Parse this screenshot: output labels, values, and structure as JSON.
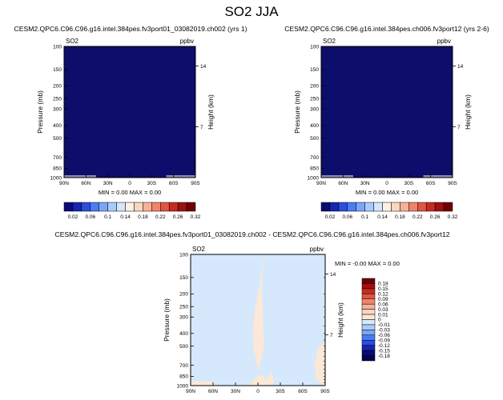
{
  "figure": {
    "title": "SO2 JJA"
  },
  "chart_data": [
    {
      "type": "heatmap",
      "panel": "top-left",
      "title": "CESM2.QPC6.C96.C96.g16.intel.384pes.fv3port01_03082019.ch002 (yrs 1)",
      "left_label": "SO2",
      "right_label": "ppbv",
      "xlabel": "",
      "ylabel": "Pressure (mb)",
      "y2label": "Height (km)",
      "x_ticks": [
        "90N",
        "60N",
        "30N",
        "0",
        "30S",
        "60S",
        "90S"
      ],
      "y_ticks": [
        "100",
        "150",
        "200",
        "250",
        "300",
        "400",
        "500",
        "700",
        "850",
        "1000"
      ],
      "y_tick_values": [
        100,
        150,
        200,
        250,
        300,
        400,
        500,
        700,
        850,
        1000
      ],
      "y2_ticks": [
        "14",
        "7"
      ],
      "y2_tick_pressures": [
        141,
        410
      ],
      "ylim": [
        1000,
        100
      ],
      "y_scale": "log",
      "min_max_text": "MIN =  0.00   MAX =  0.00",
      "field": "uniform",
      "fill_color": "#0d0d6b"
    },
    {
      "type": "heatmap",
      "panel": "top-right",
      "title": "CESM2.QPC6.C96.C96.g16.intel.384pes.ch006.fv3port12 (yrs 2-6)",
      "left_label": "SO2",
      "right_label": "ppbv",
      "xlabel": "",
      "ylabel": "Pressure (mb)",
      "y2label": "Height (km)",
      "x_ticks": [
        "90N",
        "60N",
        "30N",
        "0",
        "30S",
        "60S",
        "90S"
      ],
      "y_ticks": [
        "100",
        "150",
        "200",
        "250",
        "300",
        "400",
        "500",
        "700",
        "850",
        "1000"
      ],
      "y_tick_values": [
        100,
        150,
        200,
        250,
        300,
        400,
        500,
        700,
        850,
        1000
      ],
      "y2_ticks": [
        "14",
        "7"
      ],
      "y2_tick_pressures": [
        141,
        410
      ],
      "ylim": [
        1000,
        100
      ],
      "y_scale": "log",
      "min_max_text": "MIN =  0.00   MAX =  0.00",
      "field": "uniform",
      "fill_color": "#0d0d6b"
    },
    {
      "type": "heatmap",
      "panel": "bottom-difference",
      "title": "CESM2.QPC6.C96.C96.g16.intel.384pes.fv3port01_03082019.ch002 - CESM2.QPC6.C96.C96.g16.intel.384pes.ch006.fv3port12",
      "left_label": "SO2",
      "right_label": "ppbv",
      "xlabel": "",
      "ylabel": "Pressure (mb)",
      "y2label": "Height (km)",
      "x_ticks": [
        "90N",
        "60N",
        "30N",
        "0",
        "30S",
        "60S",
        "90S"
      ],
      "y_ticks": [
        "100",
        "150",
        "200",
        "250",
        "300",
        "400",
        "500",
        "700",
        "850",
        "1000"
      ],
      "y_tick_values": [
        100,
        150,
        200,
        250,
        300,
        400,
        500,
        700,
        850,
        1000
      ],
      "y2_ticks": [
        "14",
        "7"
      ],
      "y2_tick_pressures": [
        141,
        410
      ],
      "ylim": [
        1000,
        100
      ],
      "y_scale": "log",
      "min_max_text": "MIN = -0.00   MAX =  0.00",
      "background_color": "#d6e8fb",
      "contour_color": "#fbe8d6",
      "regions": [
        {
          "label": "equatorial column",
          "lat": [
            -7,
            -3,
            4,
            7,
            6,
            3,
            0,
            -2,
            -6,
            -8,
            -7,
            -5
          ],
          "p": [
            100,
            160,
            260,
            380,
            500,
            620,
            760,
            700,
            600,
            480,
            320,
            180
          ]
        },
        {
          "label": "southern surface",
          "lat": [
            -90,
            -78,
            -76,
            -80,
            -90
          ],
          "p": [
            1000,
            900,
            700,
            520,
            470
          ]
        },
        {
          "label": "northern surface",
          "lat": [
            90,
            70,
            55,
            65,
            90
          ],
          "p": [
            1000,
            990,
            1000,
            930,
            920
          ]
        },
        {
          "label": "tropical surface",
          "lat": [
            10,
            5,
            -5,
            -12,
            -18,
            -22,
            -15,
            -5,
            5
          ],
          "p": [
            1000,
            880,
            820,
            900,
            780,
            940,
            1000,
            990,
            1000
          ]
        }
      ]
    }
  ],
  "colorbars": {
    "top_left": {
      "labels": [
        "0.02",
        "0.06",
        "0.1",
        "0.14",
        "0.18",
        "0.22",
        "0.26",
        "0.32"
      ],
      "colors": [
        "#0a0a78",
        "#1525b0",
        "#2a4ede",
        "#4c7cf0",
        "#7aa6f8",
        "#a9cbfb",
        "#d4e6fc",
        "#fbf0e1",
        "#fbd6bd",
        "#f8b196",
        "#f0846a",
        "#e05641",
        "#c72a22",
        "#a01010",
        "#720000"
      ]
    },
    "top_right": {
      "labels": [
        "0.02",
        "0.06",
        "0.1",
        "0.14",
        "0.18",
        "0.22",
        "0.26",
        "0.32"
      ],
      "colors": [
        "#0a0a78",
        "#1525b0",
        "#2a4ede",
        "#4c7cf0",
        "#7aa6f8",
        "#a9cbfb",
        "#d4e6fc",
        "#fbf0e1",
        "#fbd6bd",
        "#f8b196",
        "#f0846a",
        "#e05641",
        "#c72a22",
        "#a01010",
        "#720000"
      ]
    },
    "difference": {
      "labels": [
        "0.18",
        "0.15",
        "0.12",
        "0.09",
        "0.06",
        "0.03",
        "0.01",
        "0",
        "-0.01",
        "-0.03",
        "-0.06",
        "-0.09",
        "-0.12",
        "-0.15",
        "-0.18"
      ],
      "colors": [
        "#720000",
        "#a01010",
        "#c72a22",
        "#e05641",
        "#f0846a",
        "#f8b196",
        "#fbd6bd",
        "#fbe8d6",
        "#d6e8fb",
        "#a9cbfb",
        "#7aa6f8",
        "#4c7cf0",
        "#2a4ede",
        "#1525b0",
        "#0a0a78",
        "#050550"
      ]
    }
  }
}
